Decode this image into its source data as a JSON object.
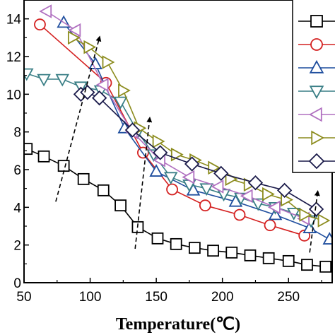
{
  "chart_data": {
    "type": "line",
    "title": "",
    "xlabel": "Temperature(℃)",
    "ylabel": "",
    "xlim": [
      50,
      283
    ],
    "ylim": [
      0,
      15
    ],
    "x_ticks": [
      50,
      100,
      150,
      200,
      250
    ],
    "y_ticks": [
      0,
      2,
      4,
      6,
      8,
      10,
      12,
      14
    ],
    "grid": false,
    "legend": "top-right",
    "series": [
      {
        "marker": "square",
        "color": "#000000",
        "x": [
          52,
          65,
          80,
          95,
          110,
          123,
          136,
          151,
          165,
          179,
          193,
          207,
          221,
          235,
          250,
          264,
          278
        ],
        "y": [
          7.1,
          6.7,
          6.2,
          5.5,
          4.9,
          4.1,
          2.95,
          2.35,
          2.05,
          1.85,
          1.7,
          1.6,
          1.45,
          1.3,
          1.15,
          0.95,
          0.85
        ]
      },
      {
        "marker": "circle",
        "color": "#d42020",
        "x": [
          62,
          112,
          140,
          162,
          187,
          213,
          236,
          262
        ],
        "y": [
          13.7,
          10.6,
          6.9,
          4.95,
          4.1,
          3.6,
          3.05,
          2.5
        ]
      },
      {
        "marker": "triangle-up",
        "color": "#1f4e9e",
        "x": [
          80,
          104,
          126,
          150,
          178,
          210,
          240,
          266,
          281
        ],
        "y": [
          13.8,
          11.6,
          8.2,
          5.9,
          4.9,
          4.3,
          3.6,
          2.9,
          2.3
        ]
      },
      {
        "marker": "triangle-down",
        "color": "#3a7f86",
        "x": [
          52,
          65,
          79,
          93,
          108,
          123,
          136,
          148,
          161,
          175,
          188,
          201,
          214,
          227,
          240,
          254,
          267
        ],
        "y": [
          11.1,
          10.8,
          10.8,
          10.4,
          10.2,
          9.6,
          8.0,
          6.8,
          5.6,
          5.2,
          5.0,
          4.7,
          4.5,
          4.2,
          4.0,
          3.7,
          3.3
        ]
      },
      {
        "marker": "triangle-left",
        "color": "#b070c0",
        "x": [
          67,
          89,
          110,
          132,
          153,
          175,
          197,
          219,
          240,
          262
        ],
        "y": [
          14.4,
          13.4,
          10.5,
          8.0,
          6.5,
          5.6,
          5.1,
          4.6,
          4.0,
          3.4
        ]
      },
      {
        "marker": "triangle-right",
        "color": "#8c8c1e",
        "x": [
          87,
          99,
          113,
          125,
          137,
          151,
          165,
          179,
          193,
          206,
          220,
          234,
          248,
          262,
          276
        ],
        "y": [
          13.0,
          12.5,
          11.7,
          10.2,
          8.2,
          7.5,
          6.8,
          6.5,
          6.1,
          5.5,
          5.2,
          4.7,
          4.4,
          3.6,
          3.3
        ]
      },
      {
        "marker": "diamond",
        "color": "#1a1a4a",
        "x": [
          93,
          98,
          107,
          132,
          153,
          177,
          199,
          225,
          247,
          271
        ],
        "y": [
          10.0,
          10.1,
          9.8,
          8.1,
          6.9,
          6.3,
          5.8,
          5.3,
          4.9,
          3.9
        ]
      }
    ],
    "annotations": [
      {
        "type": "dashed-arrow",
        "x": [
          74,
          107
        ],
        "y": [
          4.3,
          13.0
        ]
      },
      {
        "type": "dashed-arrow",
        "x": [
          134,
          145
        ],
        "y": [
          1.8,
          8.7
        ]
      },
      {
        "type": "dashed-arrow",
        "x": [
          266,
          272
        ],
        "y": [
          1.6,
          4.8
        ]
      }
    ]
  }
}
